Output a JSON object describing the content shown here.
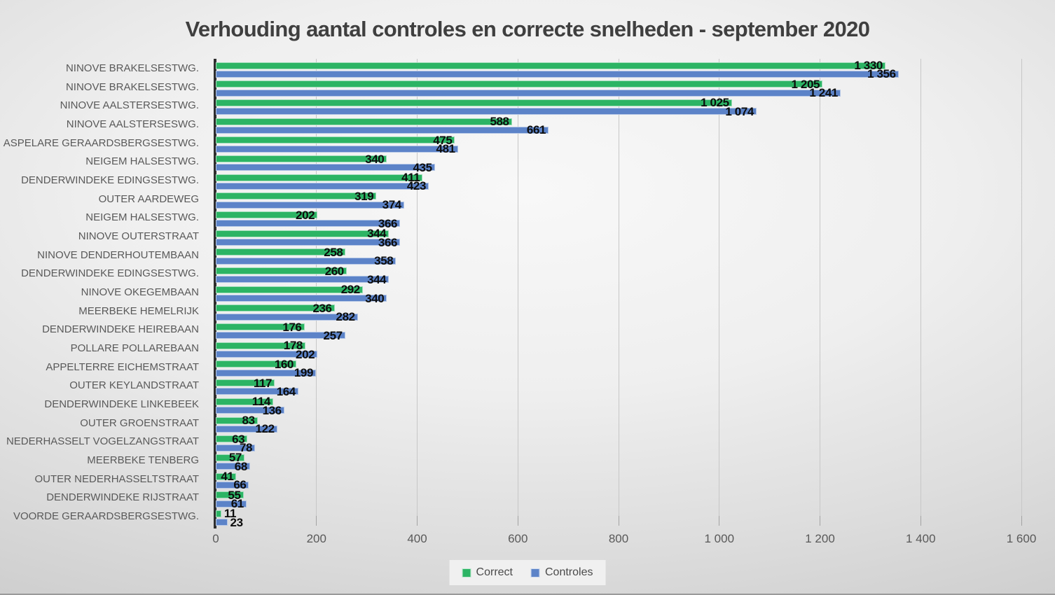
{
  "title": "Verhouding aantal controles en correcte snelheden - september 2020",
  "colors": {
    "correct": "#2cb464",
    "controles": "#5c83c8",
    "axis_line": "#2e2e2e",
    "gridline": "#c7c7c7",
    "category_text": "#595959",
    "tick_text": "#595959",
    "data_label_text": "#0d0d0d",
    "title_text": "#3f3f3f",
    "legend_bg": "#f0f0f0"
  },
  "legend": {
    "items": [
      {
        "label": "Correct",
        "color": "#2cb464"
      },
      {
        "label": "Controles",
        "color": "#5c83c8"
      }
    ],
    "position": "bottom"
  },
  "x_axis": {
    "min": 0,
    "max": 1600,
    "step": 200,
    "tick_labels": [
      "0",
      "200",
      "400",
      "600",
      "800",
      "1 000",
      "1 200",
      "1 400",
      "1 600"
    ]
  },
  "chart_data": {
    "type": "bar",
    "orientation": "horizontal",
    "title": "Verhouding aantal controles en correcte snelheden - september 2020",
    "categories": [
      "NINOVE BRAKELSESTWG.",
      "NINOVE BRAKELSESTWG.",
      "NINOVE AALSTERSESTWG.",
      "NINOVE AALSTERSESWG.",
      "ASPELARE GERAARDSBERGSESTWG.",
      "NEIGEM HALSESTWG.",
      "DENDERWINDEKE EDINGSESTWG.",
      "OUTER AARDEWEG",
      "NEIGEM HALSESTWG.",
      "NINOVE OUTERSTRAAT",
      "NINOVE DENDERHOUTEMBAAN",
      "DENDERWINDEKE EDINGSESTWG.",
      "NINOVE OKEGEMBAAN",
      "MEERBEKE HEMELRIJK",
      "DENDERWINDEKE HEIREBAAN",
      "POLLARE POLLAREBAAN",
      "APPELTERRE EICHEMSTRAAT",
      "OUTER KEYLANDSTRAAT",
      "DENDERWINDEKE LINKEBEEK",
      "OUTER GROENSTRAAT",
      "NEDERHASSELT VOGELZANGSTRAAT",
      "MEERBEKE TENBERG",
      "OUTER NEDERHASSELTSTRAAT",
      "DENDERWINDEKE RIJSTRAAT",
      "VOORDE GERAARDSBERGSESTWG."
    ],
    "series": [
      {
        "name": "Correct",
        "color": "#2cb464",
        "values": [
          1330,
          1205,
          1025,
          588,
          475,
          340,
          411,
          319,
          202,
          344,
          258,
          260,
          292,
          236,
          176,
          178,
          160,
          117,
          114,
          83,
          63,
          57,
          41,
          55,
          11
        ]
      },
      {
        "name": "Controles",
        "color": "#5c83c8",
        "values": [
          1356,
          1241,
          1074,
          661,
          481,
          435,
          423,
          374,
          366,
          366,
          358,
          344,
          340,
          282,
          257,
          202,
          199,
          164,
          136,
          122,
          78,
          68,
          66,
          61,
          23
        ]
      }
    ],
    "xlim": [
      0,
      1600
    ],
    "grid": true,
    "legend_position": "bottom",
    "data_labels": "at bar end",
    "number_format": "space thousands separator"
  }
}
